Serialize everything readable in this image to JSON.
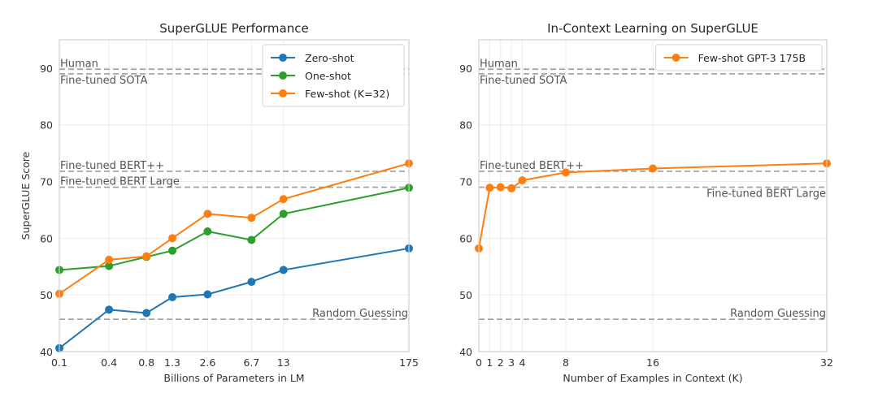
{
  "chart_data": [
    {
      "type": "line",
      "title": "SuperGLUE Performance",
      "xlabel": "Billions of Parameters in LM",
      "ylabel": "SuperGLUE Score",
      "xscale": "log",
      "x_tick_labels": [
        "0.1",
        "0.4",
        "0.8",
        "1.3",
        "2.6",
        "6.7",
        "13",
        "175"
      ],
      "x_values_billions": [
        0.125,
        0.35,
        0.76,
        1.3,
        2.7,
        6.7,
        13,
        175
      ],
      "ylim": [
        40,
        95
      ],
      "y_ticks": [
        40,
        50,
        60,
        70,
        80,
        90
      ],
      "grid": true,
      "legend_position": "top-right",
      "series": [
        {
          "name": "Zero-shot",
          "color": "#1f77b4",
          "values": [
            40.6,
            47.4,
            46.8,
            49.6,
            50.1,
            52.3,
            54.4,
            58.2
          ]
        },
        {
          "name": "One-shot",
          "color": "#2ca02c",
          "values": [
            54.4,
            55.1,
            56.7,
            57.8,
            61.2,
            59.7,
            64.3,
            68.9
          ]
        },
        {
          "name": "Few-shot (K=32)",
          "color": "#ff7f0e",
          "values": [
            50.2,
            56.2,
            56.8,
            60.0,
            64.3,
            63.6,
            66.9,
            73.2
          ]
        }
      ],
      "reference_lines": [
        {
          "label": "Human",
          "value": 89.8,
          "label_position": "above-left"
        },
        {
          "label": "Fine-tuned SOTA",
          "value": 89.0,
          "label_position": "below-left"
        },
        {
          "label": "Fine-tuned BERT++",
          "value": 71.8,
          "label_position": "above-left"
        },
        {
          "label": "Fine-tuned BERT Large",
          "value": 69.0,
          "label_position": "above-left"
        },
        {
          "label": "Random Guessing",
          "value": 45.7,
          "label_position": "above-right"
        }
      ]
    },
    {
      "type": "line",
      "title": "In-Context Learning on SuperGLUE",
      "xlabel": "Number of Examples in Context (K)",
      "ylabel": "",
      "xscale": "linear",
      "x_ticks": [
        0,
        1,
        2,
        3,
        4,
        8,
        16,
        32
      ],
      "x_tick_labels": [
        "0",
        "1",
        "2",
        "3",
        "4",
        "8",
        "16",
        "32"
      ],
      "xlim": [
        0,
        32
      ],
      "ylim": [
        40,
        95
      ],
      "y_ticks": [
        40,
        50,
        60,
        70,
        80,
        90
      ],
      "grid": true,
      "legend_position": "top-right",
      "series": [
        {
          "name": "Few-shot GPT-3 175B",
          "color": "#ff7f0e",
          "x": [
            0,
            1,
            2,
            3,
            4,
            8,
            16,
            32
          ],
          "values": [
            58.2,
            68.9,
            69.0,
            68.8,
            70.2,
            71.6,
            72.3,
            73.2
          ]
        }
      ],
      "reference_lines": [
        {
          "label": "Human",
          "value": 89.8,
          "label_position": "above-left"
        },
        {
          "label": "Fine-tuned SOTA",
          "value": 89.0,
          "label_position": "below-left"
        },
        {
          "label": "Fine-tuned BERT++",
          "value": 71.8,
          "label_position": "above-left"
        },
        {
          "label": "Fine-tuned BERT Large",
          "value": 69.0,
          "label_position": "below-right"
        },
        {
          "label": "Random Guessing",
          "value": 45.7,
          "label_position": "above-right"
        }
      ]
    }
  ]
}
